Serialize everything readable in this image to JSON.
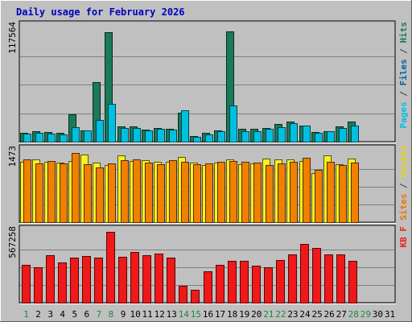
{
  "chart_data": {
    "type": "bar",
    "title": "Daily usage for February 2026",
    "days": [
      "1",
      "2",
      "3",
      "4",
      "5",
      "6",
      "7",
      "8",
      "9",
      "10",
      "11",
      "12",
      "13",
      "14",
      "15",
      "16",
      "17",
      "18",
      "19",
      "20",
      "21",
      "22",
      "23",
      "24",
      "25",
      "26",
      "27",
      "28",
      "29",
      "30",
      "31"
    ],
    "weekend_days": [
      "1",
      "7",
      "8",
      "14",
      "15",
      "21",
      "22",
      "28",
      "29"
    ],
    "panels": [
      {
        "id": "traffic",
        "max_label": "117564",
        "ymax": 117564,
        "right_label": [
          {
            "text": "Pages",
            "color": "#00c0e0"
          },
          {
            "text": " / ",
            "color": "#404040"
          },
          {
            "text": "Files",
            "color": "#0060a0"
          },
          {
            "text": " / ",
            "color": "#404040"
          },
          {
            "text": "Hits",
            "color": "#1a7a5a"
          }
        ],
        "series": [
          {
            "name": "Hits",
            "color": "#1a7a5a",
            "values": [
              9000,
              10500,
              9700,
              8800,
              28500,
              11900,
              61500,
              112800,
              15500,
              15400,
              12700,
              14000,
              13400,
              30000,
              5900,
              8700,
              12000,
              113800,
              13600,
              13100,
              14400,
              18600,
              20400,
              16900,
              9800,
              11100,
              15400,
              20900,
              null,
              null,
              null
            ]
          },
          {
            "name": "Files",
            "color": "#0060a0",
            "values": [
              null,
              null,
              null,
              null,
              null,
              null,
              null,
              null,
              null,
              null,
              null,
              null,
              null,
              null,
              null,
              null,
              null,
              null,
              null,
              null,
              null,
              null,
              null,
              null,
              null,
              null,
              null,
              null,
              null,
              null,
              null
            ]
          },
          {
            "name": "Pages",
            "color": "#00c0e0",
            "values": [
              8300,
              9400,
              8400,
              7500,
              15300,
              11200,
              22400,
              38800,
              14300,
              14400,
              11800,
              12900,
              12600,
              31900,
              5200,
              7400,
              10800,
              36900,
              10700,
              10900,
              13200,
              14800,
              19400,
              16400,
              8800,
              10400,
              14300,
              16800,
              null,
              null,
              null
            ]
          }
        ]
      },
      {
        "id": "visits",
        "max_label": "1473",
        "ymax": 1473,
        "right_label": [
          {
            "text": "Sites",
            "color": "#e87800"
          },
          {
            "text": " / ",
            "color": "#404040"
          },
          {
            "text": "Visits",
            "color": "#e8d800"
          }
        ],
        "series": [
          {
            "name": "Visits",
            "color": "#f8f020",
            "values": [
              1255,
              1310,
              1255,
              1245,
              1270,
              1410,
              1245,
              1186,
              1386,
              1270,
              1289,
              1255,
              1255,
              1350,
              1245,
              1195,
              1245,
              1302,
              1210,
              1225,
              1330,
              1310,
              1302,
              1270,
              1020,
              1386,
              1198,
              1320,
              null,
              null,
              null
            ]
          },
          {
            "name": "Sites",
            "color": "#f08000",
            "values": [
              1300,
              1220,
              1270,
              1230,
              1440,
              1205,
              1145,
              1230,
              1290,
              1300,
              1240,
              1200,
              1290,
              1260,
              1200,
              1220,
              1250,
              1270,
              1250,
              1235,
              1195,
              1225,
              1250,
              1340,
              1085,
              1255,
              1196,
              1240,
              null,
              null,
              null
            ]
          }
        ]
      },
      {
        "id": "kbytes",
        "max_label": "567258",
        "ymax": 567258,
        "right_label": [
          {
            "text": "KB F",
            "color": "#e82020"
          }
        ],
        "series": [
          {
            "name": "KB F",
            "color": "#f01818",
            "values": [
              302300,
              284000,
              381000,
              320000,
              361000,
              376500,
              358000,
              567000,
              367000,
              403000,
              379000,
              390000,
              362000,
              137000,
              100000,
              252000,
              301000,
              337000,
              336000,
              299000,
              283000,
              339000,
              385000,
              472000,
              438000,
              384000,
              387000,
              336000,
              null,
              null,
              null
            ]
          }
        ]
      }
    ]
  }
}
